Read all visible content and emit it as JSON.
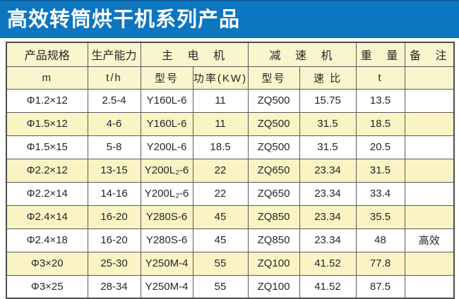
{
  "page": {
    "title": "高效转筒烘干机系列产品"
  },
  "colors": {
    "title_bg": "#0d76c0",
    "title_edge": "#0b5fa0",
    "title_text": "#ffffff",
    "header_bg": "#f9f5cd",
    "row_alt_bg": "#faf3c4",
    "row_bg": "#ffffff",
    "border": "#4c4c4c",
    "text": "#262626"
  },
  "table": {
    "header_groups": [
      {
        "label": "产品规格"
      },
      {
        "label": "生产能力"
      },
      {
        "label": "主 电 机"
      },
      {
        "label": "减 速 机"
      },
      {
        "label": "重 量"
      },
      {
        "label": "备 注"
      }
    ],
    "subheaders": [
      "m",
      "t/h",
      "型号",
      "功率(KW)",
      "型号",
      "速 比",
      "t",
      ""
    ],
    "rows": [
      [
        "Φ1.2×12",
        "2.5-4",
        "Y160L-6",
        "11",
        "ZQ500",
        "15.75",
        "13.5",
        ""
      ],
      [
        "Φ1.5×12",
        "4-6",
        "Y160L-6",
        "11",
        "ZQ500",
        "31.5",
        "18.5",
        ""
      ],
      [
        "Φ1.5×15",
        "5-8",
        "Y200L-6",
        "18.5",
        "ZQ500",
        "31.5",
        "20.5",
        ""
      ],
      [
        "Φ2.2×12",
        "13-15",
        "Y200L₂-6",
        "22",
        "ZQ650",
        "23.34",
        "31.5",
        ""
      ],
      [
        "Φ2.2×14",
        "14-16",
        "Y200L₂-6",
        "22",
        "ZQ650",
        "23.34",
        "33.4",
        ""
      ],
      [
        "Φ2.4×14",
        "16-20",
        "Y280S-6",
        "45",
        "ZQ850",
        "23.34",
        "35.5",
        ""
      ],
      [
        "Φ2.4×18",
        "16-20",
        "Y280S-6",
        "45",
        "ZQ850",
        "23.34",
        "48",
        "高效"
      ],
      [
        "Φ3×20",
        "25-30",
        "Y250M-4",
        "55",
        "ZQ100",
        "41.52",
        "77.8",
        ""
      ],
      [
        "Φ3×25",
        "28-34",
        "Y250M-4",
        "55",
        "ZQ100",
        "41.52",
        "87.5",
        ""
      ]
    ]
  }
}
